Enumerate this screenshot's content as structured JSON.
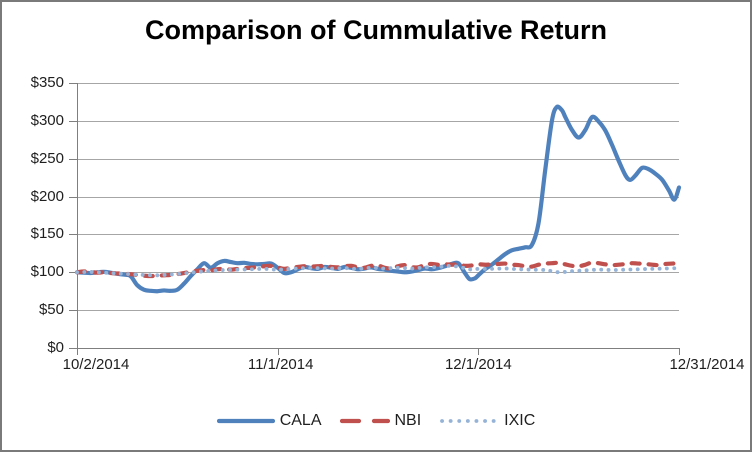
{
  "chart_data": {
    "type": "line",
    "title": "Comparison of Cummulative Return",
    "x_axis": {
      "tick_labels": [
        "10/2/2014",
        "11/1/2014",
        "12/1/2014",
        "12/31/2014"
      ],
      "tick_days": [
        0,
        30,
        60,
        90
      ],
      "range_days": [
        0,
        90
      ]
    },
    "y_axis": {
      "tick_labels": [
        "$0",
        "$50",
        "$100",
        "$150",
        "$200",
        "$250",
        "$300",
        "$350"
      ],
      "tick_values": [
        0,
        50,
        100,
        150,
        200,
        250,
        300,
        350
      ],
      "min": 0,
      "max": 350
    },
    "grid": true,
    "legend_position": "bottom",
    "series": [
      {
        "name": "CALA",
        "color": "#4F81BD",
        "style": "solid",
        "points": [
          [
            0,
            100
          ],
          [
            1,
            99.5
          ],
          [
            2,
            99
          ],
          [
            3,
            100
          ],
          [
            4,
            100.5
          ],
          [
            5,
            99.5
          ],
          [
            6,
            98
          ],
          [
            7,
            97
          ],
          [
            8,
            95
          ],
          [
            9,
            83
          ],
          [
            10,
            77
          ],
          [
            11,
            75.5
          ],
          [
            12,
            75
          ],
          [
            13,
            76
          ],
          [
            14,
            75.5
          ],
          [
            15,
            77
          ],
          [
            16,
            85
          ],
          [
            17,
            95
          ],
          [
            18,
            104
          ],
          [
            19,
            112
          ],
          [
            20,
            106
          ],
          [
            21,
            112
          ],
          [
            22,
            115
          ],
          [
            23,
            113.5
          ],
          [
            24,
            112
          ],
          [
            25,
            112.5
          ],
          [
            26,
            111
          ],
          [
            27,
            110.5
          ],
          [
            28,
            111
          ],
          [
            29,
            111.5
          ],
          [
            30,
            106
          ],
          [
            31,
            99
          ],
          [
            32,
            100
          ],
          [
            33,
            104
          ],
          [
            34,
            107
          ],
          [
            35,
            105.5
          ],
          [
            36,
            104.5
          ],
          [
            37,
            107
          ],
          [
            38,
            106
          ],
          [
            39,
            104.5
          ],
          [
            40,
            107
          ],
          [
            41,
            106
          ],
          [
            42,
            104
          ],
          [
            43,
            105
          ],
          [
            44,
            106.5
          ],
          [
            45,
            104.5
          ],
          [
            46,
            103.5
          ],
          [
            47,
            102
          ],
          [
            48,
            101
          ],
          [
            49,
            100
          ],
          [
            50,
            101
          ],
          [
            51,
            103
          ],
          [
            52,
            105
          ],
          [
            53,
            104
          ],
          [
            54,
            105.5
          ],
          [
            55,
            108
          ],
          [
            56,
            111
          ],
          [
            57,
            112
          ],
          [
            58,
            99
          ],
          [
            58.7,
            91
          ],
          [
            59.5,
            92
          ],
          [
            60,
            96
          ],
          [
            61,
            104
          ],
          [
            62,
            110
          ],
          [
            63,
            117
          ],
          [
            64,
            124
          ],
          [
            65,
            129
          ],
          [
            66,
            131
          ],
          [
            67,
            133
          ],
          [
            68,
            136
          ],
          [
            69,
            165
          ],
          [
            70,
            235
          ],
          [
            71,
            300
          ],
          [
            71.7,
            318
          ],
          [
            72.5,
            314
          ],
          [
            73,
            305
          ],
          [
            74,
            288
          ],
          [
            75,
            278
          ],
          [
            76,
            288
          ],
          [
            77,
            305
          ],
          [
            78,
            299
          ],
          [
            79,
            287
          ],
          [
            80,
            268
          ],
          [
            81,
            247
          ],
          [
            82,
            228
          ],
          [
            82.7,
            222
          ],
          [
            83.5,
            228
          ],
          [
            84.5,
            238
          ],
          [
            85.5,
            236
          ],
          [
            86.5,
            230
          ],
          [
            87.5,
            222
          ],
          [
            88.5,
            208
          ],
          [
            89.3,
            196
          ],
          [
            90,
            212
          ]
        ]
      },
      {
        "name": "NBI",
        "color": "#C0504D",
        "style": "dashed",
        "points": [
          [
            0,
            100
          ],
          [
            1,
            101
          ],
          [
            2,
            100.5
          ],
          [
            3,
            99.5
          ],
          [
            4,
            100
          ],
          [
            5,
            99
          ],
          [
            6,
            98.5
          ],
          [
            7,
            98
          ],
          [
            8,
            97.5
          ],
          [
            9,
            96.5
          ],
          [
            10,
            95.5
          ],
          [
            11,
            95
          ],
          [
            12,
            95.5
          ],
          [
            13,
            96
          ],
          [
            14,
            96.5
          ],
          [
            15,
            97.5
          ],
          [
            16,
            99
          ],
          [
            17,
            100.5
          ],
          [
            18,
            102
          ],
          [
            19,
            103
          ],
          [
            20,
            102.5
          ],
          [
            21,
            104
          ],
          [
            22,
            104.5
          ],
          [
            23,
            103.5
          ],
          [
            24,
            104.5
          ],
          [
            25,
            105.5
          ],
          [
            26,
            106
          ],
          [
            27,
            107
          ],
          [
            28,
            108
          ],
          [
            29,
            108.5
          ],
          [
            30,
            106.5
          ],
          [
            31,
            104.5
          ],
          [
            32,
            106
          ],
          [
            33,
            107
          ],
          [
            34,
            108
          ],
          [
            35,
            107.5
          ],
          [
            36,
            108
          ],
          [
            37,
            108.5
          ],
          [
            38,
            107
          ],
          [
            39,
            106.5
          ],
          [
            40,
            108
          ],
          [
            41,
            108.5
          ],
          [
            42,
            106.5
          ],
          [
            43,
            106
          ],
          [
            44,
            108.5
          ],
          [
            45,
            109
          ],
          [
            46,
            106
          ],
          [
            47,
            105
          ],
          [
            48,
            108
          ],
          [
            49,
            109.5
          ],
          [
            50,
            107
          ],
          [
            51,
            106.5
          ],
          [
            52,
            110
          ],
          [
            53,
            111
          ],
          [
            54,
            110
          ],
          [
            55,
            110.5
          ],
          [
            56,
            110
          ],
          [
            57,
            110.5
          ],
          [
            58,
            108.5
          ],
          [
            59,
            109
          ],
          [
            60,
            110.5
          ],
          [
            61,
            110
          ],
          [
            62,
            110.5
          ],
          [
            63,
            111
          ],
          [
            64,
            111.5
          ],
          [
            65,
            110
          ],
          [
            66,
            109.5
          ],
          [
            67,
            108
          ],
          [
            68,
            107.5
          ],
          [
            69,
            110
          ],
          [
            70,
            111.5
          ],
          [
            71,
            112
          ],
          [
            72,
            112.5
          ],
          [
            73,
            110.5
          ],
          [
            74,
            108.5
          ],
          [
            75,
            108
          ],
          [
            76,
            110
          ],
          [
            77,
            113
          ],
          [
            78,
            112
          ],
          [
            79,
            110.5
          ],
          [
            80,
            109.5
          ],
          [
            81,
            110
          ],
          [
            82,
            111
          ],
          [
            83,
            112
          ],
          [
            84,
            111.5
          ],
          [
            85,
            111
          ],
          [
            86,
            110
          ],
          [
            87,
            109.5
          ],
          [
            88,
            111
          ],
          [
            89,
            111.5
          ],
          [
            90,
            112
          ]
        ]
      },
      {
        "name": "IXIC",
        "color": "#95B3D7",
        "style": "dotted",
        "points": [
          [
            0,
            100
          ],
          [
            2,
            100.5
          ],
          [
            4,
            99.5
          ],
          [
            6,
            98.5
          ],
          [
            8,
            97.5
          ],
          [
            10,
            96.5
          ],
          [
            12,
            96
          ],
          [
            14,
            97
          ],
          [
            16,
            98.5
          ],
          [
            18,
            100.5
          ],
          [
            20,
            102
          ],
          [
            22,
            103
          ],
          [
            24,
            103.5
          ],
          [
            26,
            104
          ],
          [
            28,
            104.5
          ],
          [
            30,
            103.5
          ],
          [
            32,
            104.5
          ],
          [
            34,
            105.5
          ],
          [
            36,
            105.5
          ],
          [
            38,
            105
          ],
          [
            40,
            105.5
          ],
          [
            42,
            104.5
          ],
          [
            44,
            106
          ],
          [
            46,
            105
          ],
          [
            48,
            106
          ],
          [
            50,
            105
          ],
          [
            52,
            106.5
          ],
          [
            54,
            107
          ],
          [
            56,
            108.5
          ],
          [
            58,
            105.5
          ],
          [
            59,
            103.5
          ],
          [
            60,
            104.5
          ],
          [
            62,
            104.5
          ],
          [
            64,
            105
          ],
          [
            66,
            104
          ],
          [
            68,
            103.5
          ],
          [
            70,
            103
          ],
          [
            71,
            101.5
          ],
          [
            72,
            100
          ],
          [
            73,
            100.5
          ],
          [
            74,
            101.5
          ],
          [
            76,
            102.5
          ],
          [
            78,
            103.5
          ],
          [
            80,
            103
          ],
          [
            82,
            103.5
          ],
          [
            84,
            104
          ],
          [
            86,
            104.5
          ],
          [
            88,
            105
          ],
          [
            90,
            105.5
          ]
        ]
      }
    ]
  },
  "colors": {
    "axis": "#7f7f7f",
    "gridline": "#a6a6a6",
    "border": "#7a7a7a",
    "background": "#ffffff"
  }
}
